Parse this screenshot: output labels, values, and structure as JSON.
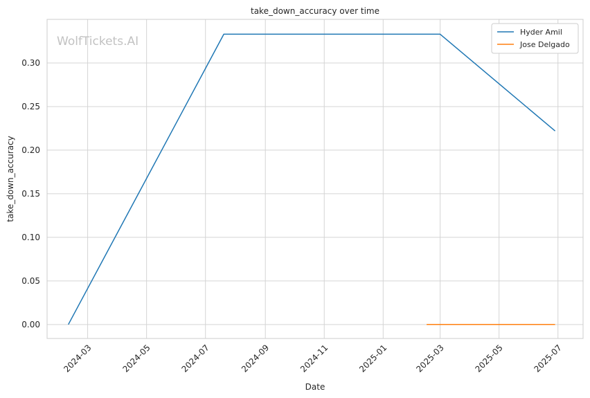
{
  "watermark": "WolfTickets.AI",
  "chart_data": {
    "type": "line",
    "title": "take_down_accuracy over time",
    "xlabel": "Date",
    "ylabel": "take_down_accuracy",
    "x_ticks": [
      "2024-03",
      "2024-05",
      "2024-07",
      "2024-09",
      "2024-11",
      "2025-01",
      "2025-03",
      "2025-05",
      "2025-07"
    ],
    "y_ticks": [
      "0.00",
      "0.05",
      "0.10",
      "0.15",
      "0.20",
      "0.25",
      "0.30"
    ],
    "ylim": [
      -0.016,
      0.35
    ],
    "xlim": [
      "2024-01-19",
      "2025-07-27"
    ],
    "grid": true,
    "legend_position": "top-right",
    "series": [
      {
        "name": "Hyder Amil",
        "color": "#1f77b4",
        "x": [
          "2024-02-10",
          "2024-07-20",
          "2025-03-01",
          "2025-06-28"
        ],
        "y": [
          0.0,
          0.333,
          0.333,
          0.222
        ]
      },
      {
        "name": "Jose Delgado",
        "color": "#ff7f0e",
        "x": [
          "2025-02-15",
          "2025-06-28"
        ],
        "y": [
          0.0,
          0.0
        ]
      }
    ]
  }
}
